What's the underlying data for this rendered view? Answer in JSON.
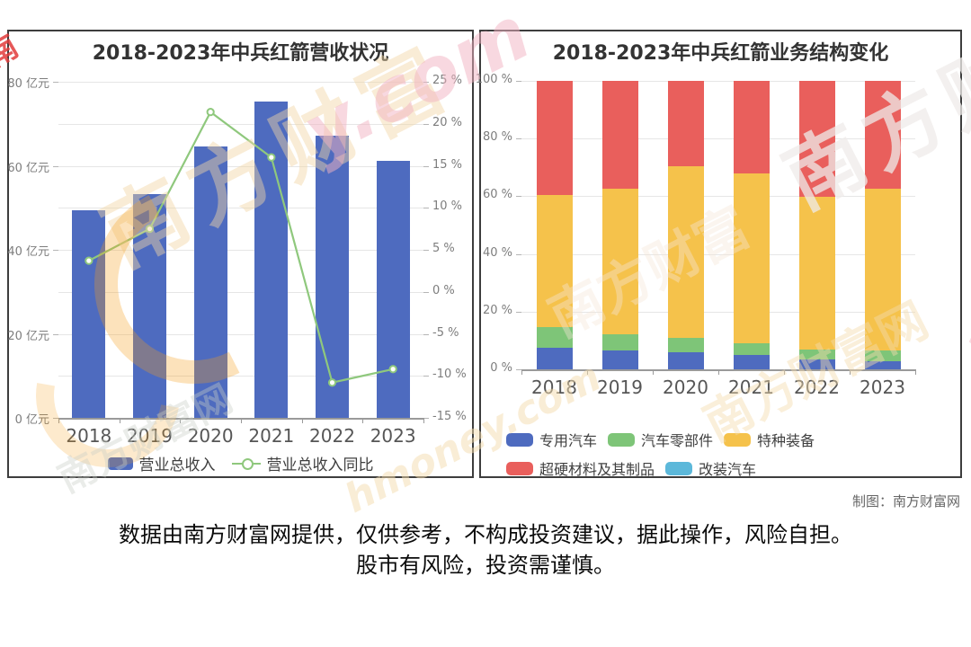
{
  "chart_data": [
    {
      "type": "bar",
      "title": "2018-2023年中兵红箭营收状况",
      "categories": [
        "2018",
        "2019",
        "2020",
        "2021",
        "2022",
        "2023"
      ],
      "bar_series": {
        "name": "营业总收入",
        "unit": "亿元",
        "color": "#4e6bbf",
        "values": [
          49.4,
          53.3,
          64.5,
          75.2,
          67.1,
          61.2
        ],
        "axis": {
          "min": 0,
          "max": 80,
          "ticks": [
            {
              "label": "80 亿元",
              "value": 80
            },
            {
              "label": "60 亿元",
              "value": 60
            },
            {
              "label": "40 亿元",
              "value": 40
            },
            {
              "label": "20 亿元",
              "value": 20
            },
            {
              "label": "0 亿元",
              "value": 0
            }
          ]
        }
      },
      "line_series": {
        "name": "营业总收入同比",
        "unit": "%",
        "color": "#8fc87d",
        "values": [
          3.7,
          7.5,
          21.4,
          16.0,
          -10.8,
          -9.2
        ],
        "axis": {
          "min": -15,
          "max": 25,
          "ticks": [
            {
              "label": "25 %",
              "value": 25
            },
            {
              "label": "20 %",
              "value": 20
            },
            {
              "label": "15 %",
              "value": 15
            },
            {
              "label": "10 %",
              "value": 10
            },
            {
              "label": "5 %",
              "value": 5
            },
            {
              "label": "0 %",
              "value": 0
            },
            {
              "label": "-5 %",
              "value": -5
            },
            {
              "label": "-10 %",
              "value": -10
            },
            {
              "label": "-15 %",
              "value": -15
            }
          ]
        }
      },
      "grid": true,
      "legend_position": "bottom"
    },
    {
      "type": "bar",
      "subtype": "stacked-percent",
      "title": "2018-2023年中兵红箭业务结构变化",
      "categories": [
        "2018",
        "2019",
        "2020",
        "2021",
        "2022",
        "2023"
      ],
      "series": [
        {
          "name": "专用汽车",
          "color": "#4e6bbf",
          "values": [
            7.5,
            6.5,
            6.0,
            5.0,
            3.4,
            2.8
          ]
        },
        {
          "name": "汽车零部件",
          "color": "#7ec578",
          "values": [
            7.0,
            5.5,
            5.0,
            4.0,
            3.5,
            3.7
          ]
        },
        {
          "name": "特种装备",
          "color": "#f5c24b",
          "values": [
            46.0,
            50.5,
            59.5,
            59.0,
            53.0,
            56.0
          ]
        },
        {
          "name": "超硬材料及其制品",
          "color": "#e95f5c",
          "values": [
            39.5,
            37.5,
            29.5,
            32.0,
            40.1,
            37.5
          ]
        },
        {
          "name": "改装汽车",
          "color": "#5cb8da",
          "values": [
            0,
            0,
            0,
            0,
            0,
            0
          ]
        }
      ],
      "y_axis": {
        "min": 0,
        "max": 100,
        "ticks": [
          {
            "label": "100 %",
            "value": 100
          },
          {
            "label": "80 %",
            "value": 80
          },
          {
            "label": "60 %",
            "value": 60
          },
          {
            "label": "40 %",
            "value": 40
          },
          {
            "label": "20 %",
            "value": 20
          },
          {
            "label": "0 %",
            "value": 0
          }
        ]
      },
      "grid": true,
      "legend_position": "bottom-left"
    }
  ],
  "footer": {
    "credit": "制图：南方财富网",
    "disclaimer_line1": "数据由南方财富网提供，仅供参考，不构成投资建议，据此操作，风险自担。",
    "disclaimer_line2": "股市有风险，投资需谨慎。"
  },
  "watermarks": {
    "brand_cn": "南方财富",
    "brand_cn_full": "南方财富网",
    "brand_short": "南方财",
    "site_suffix": "y.com",
    "site": "hmoney.com",
    "edge_fragment": "南"
  },
  "colors": {
    "bar_blue": "#4e6bbf",
    "line_green": "#8fc87d",
    "seg_green": "#7ec578",
    "seg_yellow": "#f5c24b",
    "seg_red": "#e95f5c",
    "seg_cyan": "#5cb8da",
    "gridline": "#e6e6e6",
    "axis_label": "#7d7d7d",
    "panel_border": "#3d3d3d"
  }
}
